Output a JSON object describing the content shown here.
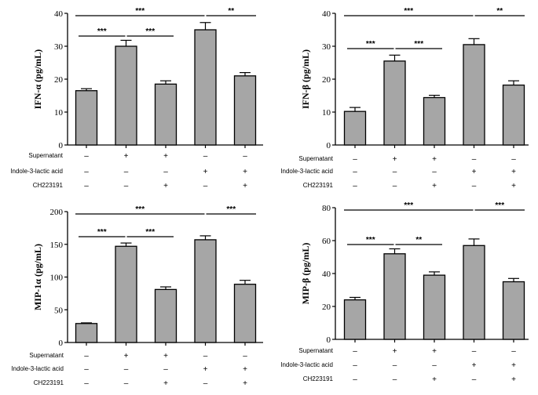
{
  "row_labels": [
    "Supernatant",
    "Indole-3-lactic acid",
    "CH223191"
  ],
  "conditions": [
    [
      "–",
      "–",
      "–"
    ],
    [
      "+",
      "–",
      "–"
    ],
    [
      "+",
      "–",
      "+"
    ],
    [
      "–",
      "+",
      "–"
    ],
    [
      "–",
      "+",
      "+"
    ]
  ],
  "colors": {
    "bar": "#a6a6a6",
    "axis": "#000000"
  },
  "chart_data": [
    {
      "type": "bar",
      "ylabel": "IFN-α  (pg/mL)",
      "ylim": [
        0,
        40
      ],
      "yticks": [
        0,
        10,
        20,
        30,
        40
      ],
      "values": [
        16.5,
        30,
        18.5,
        35,
        21
      ],
      "errors": [
        0.6,
        1.8,
        1.0,
        2.2,
        1.0
      ],
      "significance": [
        {
          "from": 0,
          "to": 3,
          "label": "***",
          "level": 2
        },
        {
          "from": 3,
          "to": 4,
          "label": "**",
          "level": 2
        },
        {
          "from": 1,
          "to": 0,
          "label": "***",
          "level": 1
        },
        {
          "from": 1,
          "to": 2,
          "label": "***",
          "level": 1
        }
      ]
    },
    {
      "type": "bar",
      "ylabel": "IFN-β  (pg/mL)",
      "ylim": [
        0,
        40
      ],
      "yticks": [
        0,
        10,
        20,
        30,
        40
      ],
      "values": [
        10.2,
        25.5,
        14.4,
        30.5,
        18.2
      ],
      "errors": [
        1.2,
        1.8,
        0.7,
        1.8,
        1.3
      ],
      "significance": [
        {
          "from": 0,
          "to": 3,
          "label": "***",
          "level": 2
        },
        {
          "from": 3,
          "to": 4,
          "label": "**",
          "level": 2
        },
        {
          "from": 1,
          "to": 0,
          "label": "***",
          "level": 1
        },
        {
          "from": 1,
          "to": 2,
          "label": "***",
          "level": 1
        }
      ]
    },
    {
      "type": "bar",
      "ylabel": "MIP-1α  (pg/mL)",
      "ylim": [
        0,
        200
      ],
      "yticks": [
        0,
        50,
        100,
        150,
        200
      ],
      "values": [
        29,
        147,
        81,
        157,
        89
      ],
      "errors": [
        1.0,
        5.0,
        4.0,
        6.0,
        6.0
      ],
      "significance": [
        {
          "from": 0,
          "to": 3,
          "label": "***",
          "level": 2
        },
        {
          "from": 3,
          "to": 4,
          "label": "***",
          "level": 2
        },
        {
          "from": 1,
          "to": 0,
          "label": "***",
          "level": 1
        },
        {
          "from": 1,
          "to": 2,
          "label": "***",
          "level": 1
        }
      ]
    },
    {
      "type": "bar",
      "ylabel": "MIP-β  (pg/mL)",
      "ylim": [
        0,
        80
      ],
      "yticks": [
        0,
        20,
        40,
        60,
        80
      ],
      "values": [
        24,
        52,
        39,
        57,
        35
      ],
      "errors": [
        1.5,
        3.0,
        2.0,
        4.0,
        2.0
      ],
      "significance": [
        {
          "from": 0,
          "to": 3,
          "label": "***",
          "level": 2
        },
        {
          "from": 3,
          "to": 4,
          "label": "***",
          "level": 2
        },
        {
          "from": 1,
          "to": 0,
          "label": "***",
          "level": 1
        },
        {
          "from": 1,
          "to": 2,
          "label": "**",
          "level": 1
        }
      ]
    }
  ]
}
